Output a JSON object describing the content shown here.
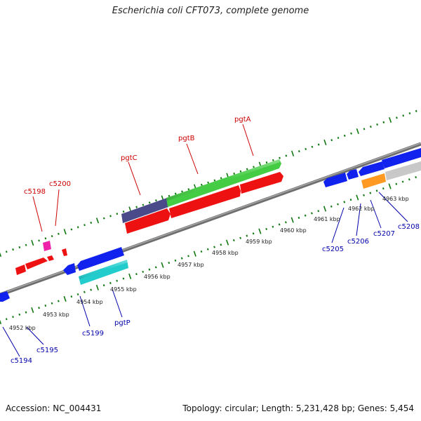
{
  "title": "Escherichia coli CFT073, complete genome",
  "footer": {
    "accession": "Accession: NC_004431",
    "topology": "Topology: circular; Length: 5,231,428 bp; Genes: 5,454"
  },
  "colors": {
    "backbone": "#808080",
    "forward_label": "#cc0000",
    "reverse_label": "#0000aa",
    "tick": "#117711",
    "red": "#ee1111",
    "green": "#44cc44",
    "navy": "#4a4a8a",
    "blue": "#1122ee",
    "cyan": "#22cccc",
    "magenta": "#ee22aa",
    "orange": "#ff9922",
    "gray": "#c8c8c8"
  },
  "ruler_labels": [
    "4952 kbp",
    "4953 kbp",
    "4954 kbp",
    "4955 kbp",
    "4956 kbp",
    "4957 kbp",
    "4958 kbp",
    "4959 kbp",
    "4960 kbp",
    "4961 kbp",
    "4962 kbp",
    "4963 kbp"
  ],
  "forward_labels": [
    "c5198",
    "c5200",
    "pgtC",
    "pgtB",
    "pgtA"
  ],
  "reverse_labels": [
    "c5194",
    "c5195",
    "c5199",
    "pgtP",
    "c5205",
    "c5206",
    "c5207",
    "c5208"
  ]
}
